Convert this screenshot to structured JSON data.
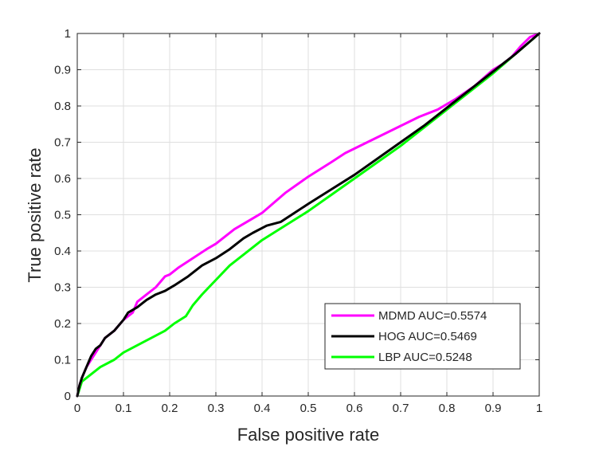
{
  "chart_data": {
    "type": "line",
    "title": "",
    "xlabel": "False positive rate",
    "ylabel": "True positive rate",
    "xlim": [
      0,
      1
    ],
    "ylim": [
      0,
      1
    ],
    "xticks": [
      "0",
      "0.1",
      "0.2",
      "0.3",
      "0.4",
      "0.5",
      "0.6",
      "0.7",
      "0.8",
      "0.9",
      "1"
    ],
    "yticks": [
      "0",
      "0.1",
      "0.2",
      "0.3",
      "0.4",
      "0.5",
      "0.6",
      "0.7",
      "0.8",
      "0.9",
      "1"
    ],
    "grid": true,
    "legend_position": "bottom-right",
    "series": [
      {
        "name": "MDMD AUC=0.5574",
        "color": "#ff00ff",
        "x": [
          0,
          0.005,
          0.01,
          0.02,
          0.03,
          0.04,
          0.05,
          0.06,
          0.08,
          0.1,
          0.12,
          0.13,
          0.15,
          0.17,
          0.19,
          0.2,
          0.22,
          0.25,
          0.28,
          0.3,
          0.34,
          0.38,
          0.4,
          0.45,
          0.5,
          0.55,
          0.58,
          0.62,
          0.66,
          0.7,
          0.74,
          0.78,
          0.82,
          0.86,
          0.9,
          0.92,
          0.94,
          0.96,
          0.98,
          1.0
        ],
        "y": [
          0,
          0.03,
          0.05,
          0.08,
          0.1,
          0.12,
          0.14,
          0.16,
          0.18,
          0.21,
          0.23,
          0.26,
          0.28,
          0.3,
          0.33,
          0.335,
          0.355,
          0.38,
          0.405,
          0.42,
          0.46,
          0.49,
          0.505,
          0.56,
          0.605,
          0.645,
          0.67,
          0.695,
          0.72,
          0.745,
          0.77,
          0.79,
          0.82,
          0.855,
          0.9,
          0.915,
          0.935,
          0.965,
          0.99,
          1.0
        ]
      },
      {
        "name": "HOG AUC=0.5469",
        "color": "#000000",
        "x": [
          0,
          0.005,
          0.01,
          0.02,
          0.03,
          0.04,
          0.05,
          0.06,
          0.08,
          0.1,
          0.11,
          0.13,
          0.15,
          0.17,
          0.19,
          0.21,
          0.24,
          0.27,
          0.3,
          0.33,
          0.36,
          0.38,
          0.41,
          0.44,
          0.47,
          0.5,
          0.55,
          0.6,
          0.65,
          0.7,
          0.75,
          0.8,
          0.85,
          0.9,
          0.95,
          1.0
        ],
        "y": [
          0,
          0.03,
          0.05,
          0.08,
          0.11,
          0.13,
          0.14,
          0.16,
          0.18,
          0.21,
          0.23,
          0.245,
          0.265,
          0.28,
          0.29,
          0.305,
          0.33,
          0.36,
          0.38,
          0.405,
          0.435,
          0.45,
          0.47,
          0.48,
          0.505,
          0.53,
          0.57,
          0.61,
          0.655,
          0.7,
          0.745,
          0.795,
          0.845,
          0.895,
          0.945,
          1.0
        ]
      },
      {
        "name": "LBP AUC=0.5248",
        "color": "#00ff00",
        "x": [
          0,
          0.005,
          0.01,
          0.03,
          0.05,
          0.08,
          0.1,
          0.13,
          0.16,
          0.19,
          0.21,
          0.235,
          0.25,
          0.27,
          0.3,
          0.33,
          0.36,
          0.4,
          0.45,
          0.5,
          0.55,
          0.6,
          0.65,
          0.7,
          0.75,
          0.8,
          0.85,
          0.9,
          0.95,
          1.0
        ],
        "y": [
          0,
          0.02,
          0.04,
          0.06,
          0.08,
          0.1,
          0.12,
          0.14,
          0.16,
          0.18,
          0.2,
          0.22,
          0.25,
          0.28,
          0.32,
          0.36,
          0.39,
          0.43,
          0.47,
          0.51,
          0.555,
          0.6,
          0.645,
          0.69,
          0.74,
          0.79,
          0.84,
          0.89,
          0.945,
          1.0
        ]
      }
    ]
  }
}
